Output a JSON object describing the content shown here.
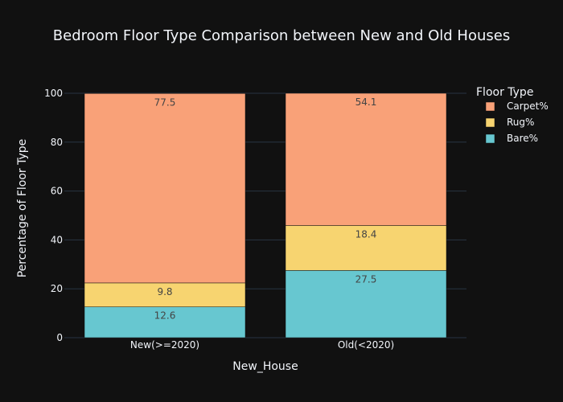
{
  "chart_data": {
    "type": "bar",
    "barmode": "stack",
    "title": "Bedroom Floor Type Comparison between New and Old Houses",
    "xlabel": "New_House",
    "ylabel": "Percentage of Floor Type",
    "categories": [
      "New(>=2020)",
      "Old(<2020)"
    ],
    "ylim": [
      0,
      100
    ],
    "yticks": [
      0,
      20,
      40,
      60,
      80,
      100
    ],
    "grid": true,
    "legend": {
      "title": "Floor Type",
      "position": "top-right"
    },
    "series": [
      {
        "name": "Bare%",
        "values": [
          12.6,
          27.5
        ],
        "color": "#67c7d0"
      },
      {
        "name": "Rug%",
        "values": [
          9.8,
          18.4
        ],
        "color": "#f7d470"
      },
      {
        "name": "Carpet%",
        "values": [
          77.5,
          54.1
        ],
        "color": "#f9a178"
      }
    ],
    "legend_order": [
      "Carpet%",
      "Rug%",
      "Bare%"
    ]
  }
}
